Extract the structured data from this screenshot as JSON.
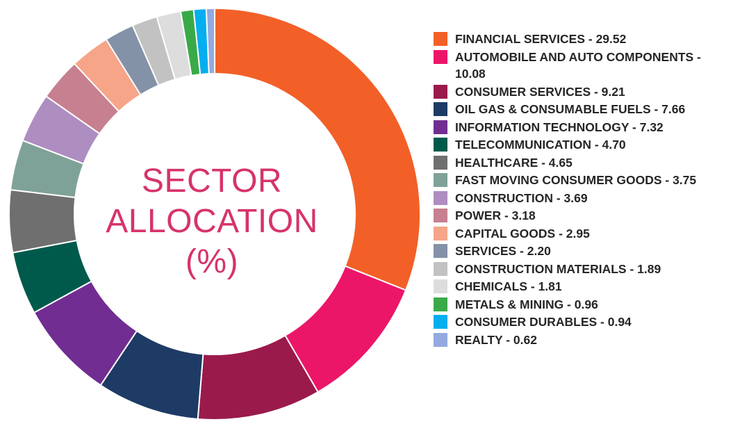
{
  "chart_data": {
    "type": "pie",
    "title": "SECTOR ALLOCATION (%)",
    "title_lines": [
      "SECTOR",
      "ALLOCATION",
      "(%)"
    ],
    "legend_position": "right",
    "slices": [
      {
        "label": "FINANCIAL SERVICES - 29.52",
        "name": "FINANCIAL SERVICES",
        "value": 29.52,
        "color": "#f26027"
      },
      {
        "label": "AUTOMOBILE AND AUTO COMPONENTS - 10.08",
        "name": "AUTOMOBILE AND AUTO COMPONENTS",
        "value": 10.08,
        "color": "#ec1669"
      },
      {
        "label": "CONSUMER SERVICES - 9.21",
        "name": "CONSUMER SERVICES",
        "value": 9.21,
        "color": "#9b1a4c"
      },
      {
        "label": "OIL GAS & CONSUMABLE FUELS - 7.66",
        "name": "OIL GAS & CONSUMABLE FUELS",
        "value": 7.66,
        "color": "#1d3b65"
      },
      {
        "label": "INFORMATION TECHNOLOGY - 7.32",
        "name": "INFORMATION TECHNOLOGY",
        "value": 7.32,
        "color": "#712d91"
      },
      {
        "label": "TELECOMMUNICATION - 4.70",
        "name": "TELECOMMUNICATION",
        "value": 4.7,
        "color": "#005a4c"
      },
      {
        "label": "HEALTHCARE - 4.65",
        "name": "HEALTHCARE",
        "value": 4.65,
        "color": "#6f6f6f"
      },
      {
        "label": "FAST MOVING CONSUMER GOODS - 3.75",
        "name": "FAST MOVING CONSUMER GOODS",
        "value": 3.75,
        "color": "#7fa298"
      },
      {
        "label": "CONSTRUCTION - 3.69",
        "name": "CONSTRUCTION",
        "value": 3.69,
        "color": "#ae8dc1"
      },
      {
        "label": "POWER - 3.18",
        "name": "POWER",
        "value": 3.18,
        "color": "#c6808f"
      },
      {
        "label": "CAPITAL GOODS - 2.95",
        "name": "CAPITAL GOODS",
        "value": 2.95,
        "color": "#f6a588"
      },
      {
        "label": "SERVICES - 2.20",
        "name": "SERVICES",
        "value": 2.2,
        "color": "#8492a8"
      },
      {
        "label": "CONSTRUCTION MATERIALS - 1.89",
        "name": "CONSTRUCTION MATERIALS",
        "value": 1.89,
        "color": "#c2c2c2"
      },
      {
        "label": "CHEMICALS - 1.81",
        "name": "CHEMICALS",
        "value": 1.81,
        "color": "#dddddd"
      },
      {
        "label": "METALS & MINING - 0.96",
        "name": "METALS & MINING",
        "value": 0.96,
        "color": "#3aaa49"
      },
      {
        "label": "CONSUMER DURABLES - 0.94",
        "name": "CONSUMER DURABLES",
        "value": 0.94,
        "color": "#04aeef"
      },
      {
        "label": "REALTY - 0.62",
        "name": "REALTY",
        "value": 0.62,
        "color": "#94a9e0"
      }
    ]
  }
}
